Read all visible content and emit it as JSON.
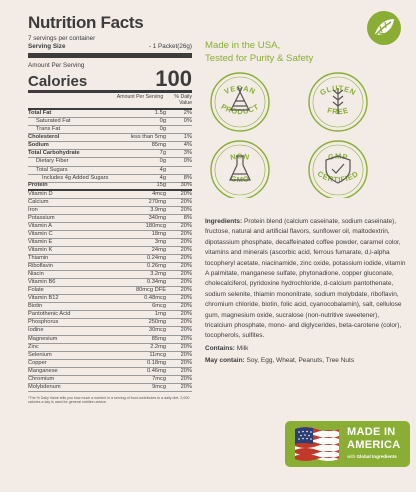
{
  "nutrition": {
    "title": "Nutrition Facts",
    "servings": "7 servings per container",
    "serving_size_label": "Serving Size",
    "serving_size_value": "- 1 Packet(26g)",
    "amount_per_serving": "Amount Per Serving",
    "calories_label": "Calories",
    "calories_value": "100",
    "header_amount": "Amount Per Serving",
    "header_dv": "% Daily Value",
    "rows": [
      {
        "name": "Total Fat",
        "amount": "1.5g",
        "dv": "2%",
        "style": "b"
      },
      {
        "name": "Saturated Fat",
        "amount": "0g",
        "dv": "0%",
        "style": "i1"
      },
      {
        "name": "Trans Fat",
        "amount": "0g",
        "dv": "",
        "style": "i1"
      },
      {
        "name": "Cholesterol",
        "amount": "less than 5mg",
        "dv": "1%",
        "style": "b"
      },
      {
        "name": "Sodium",
        "amount": "85mg",
        "dv": "4%",
        "style": "b"
      },
      {
        "name": "Total Carbohydrate",
        "amount": "7g",
        "dv": "3%",
        "style": "b"
      },
      {
        "name": "Dietary Fiber",
        "amount": "0g",
        "dv": "0%",
        "style": "i1"
      },
      {
        "name": "Total Sugars",
        "amount": "4g",
        "dv": "",
        "style": "i1"
      },
      {
        "name": "Includes 4g Added Sugars",
        "amount": "4g",
        "dv": "8%",
        "style": "i2"
      },
      {
        "name": "Protein",
        "amount": "15g",
        "dv": "30%",
        "style": "b thick"
      },
      {
        "name": "Vitamin D",
        "amount": "4mcg",
        "dv": "20%",
        "style": ""
      },
      {
        "name": "Calcium",
        "amount": "270mg",
        "dv": "20%",
        "style": ""
      },
      {
        "name": "Iron",
        "amount": "3.9mg",
        "dv": "20%",
        "style": ""
      },
      {
        "name": "Potassium",
        "amount": "340mg",
        "dv": "8%",
        "style": ""
      },
      {
        "name": "Vitamin A",
        "amount": "180mcg",
        "dv": "20%",
        "style": ""
      },
      {
        "name": "Vitamin C",
        "amount": "18mg",
        "dv": "20%",
        "style": ""
      },
      {
        "name": "Vitamin E",
        "amount": "3mg",
        "dv": "20%",
        "style": ""
      },
      {
        "name": "Vitamin K",
        "amount": "24mg",
        "dv": "20%",
        "style": ""
      },
      {
        "name": "Thiamin",
        "amount": "0.24mg",
        "dv": "20%",
        "style": ""
      },
      {
        "name": "Riboflavin",
        "amount": "0.26mg",
        "dv": "20%",
        "style": ""
      },
      {
        "name": "Niacin",
        "amount": "3.2mg",
        "dv": "20%",
        "style": ""
      },
      {
        "name": "Vitamin B6",
        "amount": "0.34mg",
        "dv": "20%",
        "style": ""
      },
      {
        "name": "Folate",
        "amount": "80mcg DFE",
        "dv": "20%",
        "style": ""
      },
      {
        "name": "Vitamin B12",
        "amount": "0.48mcg",
        "dv": "20%",
        "style": ""
      },
      {
        "name": "Biotin",
        "amount": "6mcg",
        "dv": "20%",
        "style": ""
      },
      {
        "name": "Pantothenic Acid",
        "amount": "1mg",
        "dv": "20%",
        "style": ""
      },
      {
        "name": "Phosphorus",
        "amount": "250mg",
        "dv": "20%",
        "style": ""
      },
      {
        "name": "Iodine",
        "amount": "30mcg",
        "dv": "20%",
        "style": ""
      },
      {
        "name": "Magnesium",
        "amount": "85mg",
        "dv": "20%",
        "style": ""
      },
      {
        "name": "Zinc",
        "amount": "2.2mg",
        "dv": "20%",
        "style": ""
      },
      {
        "name": "Selenium",
        "amount": "11mcg",
        "dv": "20%",
        "style": ""
      },
      {
        "name": "Copper",
        "amount": "0.18mg",
        "dv": "20%",
        "style": ""
      },
      {
        "name": "Manganese",
        "amount": "0.46mg",
        "dv": "20%",
        "style": ""
      },
      {
        "name": "Chromium",
        "amount": "7mcg",
        "dv": "20%",
        "style": ""
      },
      {
        "name": "Molybdenum",
        "amount": "9mcg",
        "dv": "20%",
        "style": ""
      }
    ],
    "footnote": "*The % Daily Value tells you how much a nutrient in a serving of food contributes to a daily diet. 2,000 calories a day is used for general nutrition advice."
  },
  "tagline_line1": "Made in the USA,",
  "tagline_line2": "Tested for Purity & Safety",
  "badges": {
    "vegan": [
      "VEGAN",
      "PRODUCT"
    ],
    "gluten": [
      "GLUTEN",
      "FREE"
    ],
    "non_gmo": [
      "NON",
      "GMO"
    ],
    "gmp": [
      "GMP",
      "CERTIFIED"
    ]
  },
  "ingredients_label": "Ingredients:",
  "ingredients_text": "Protein blend (calcium caseinate, sodium caseinate), fructose, natural and artificial flavors, sunflower oil, maltodextrin, dipotassium phosphate, decaffeinated coffee powder, caramel color, vitamins and minerals (ascorbic acid, ferrous fumarate, d,l-alpha tocopheryl acetate, niacinamide, zinc oxide, potassium iodide, vitamin A palmitate, manganese sulfate, phytonadione, copper gluconate, cholecalciferol, pyridoxine hydrochloride, d-calcium pantothenate, sodium selenite, thiamin mononitrate, sodium molybdate, riboflavin, chromium chloride, biotin, folic acid, cyanocobalamin), salt, cellulose gum, magnesium oxide, sucralose (non-nutritive sweetener), tricalcium phosphate, mono- and diglycerides, beta-carotene (color), tocopherols, sulfites.",
  "contains_label": "Contains:",
  "contains_text": "Milk",
  "may_contain_label": "May contain:",
  "may_contain_text": "Soy, Egg, Wheat, Peanuts, Tree Nuts",
  "made_in": {
    "line1": "MADE IN",
    "line2": "AMERICA",
    "line3_prefix": "with",
    "line3_bold": "Global Ingredients"
  },
  "colors": {
    "accent": "#8aae34",
    "background": "#f3ebe6",
    "text": "#3c3c3c"
  }
}
